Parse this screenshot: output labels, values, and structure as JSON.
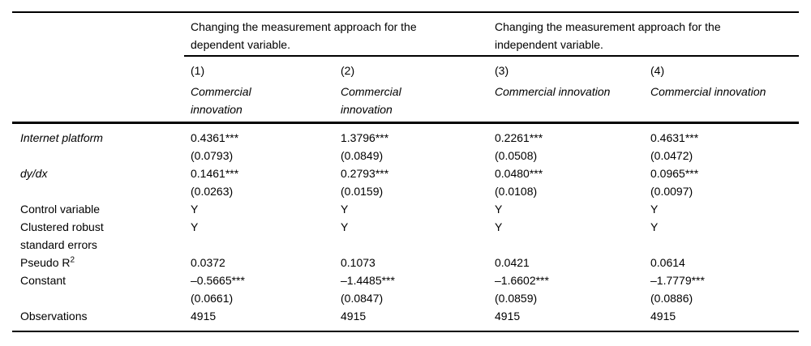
{
  "header": {
    "groups": [
      {
        "label": "Changing the measurement approach for the\ndependent variable."
      },
      {
        "label": "Changing the measurement approach for the\nindependent variable."
      }
    ],
    "numbers": [
      "(1)",
      "(2)",
      "(3)",
      "(4)"
    ],
    "dep_vars": [
      "Commercial\ninnovation",
      "Commercial\ninnovation",
      "Commercial innovation",
      "Commercial innovation"
    ]
  },
  "rows": [
    {
      "label": "Internet platform",
      "sup": "",
      "cells": [
        "0.4361***",
        "1.3796***",
        "0.2261***",
        "0.4631***"
      ]
    },
    {
      "label": "",
      "sup": "",
      "cells": [
        "(0.0793)",
        "(0.0849)",
        "(0.0508)",
        "(0.0472)"
      ]
    },
    {
      "label": "dy/dx",
      "sup": "",
      "cells": [
        "0.1461***",
        "0.2793***",
        "0.0480***",
        "0.0965***"
      ]
    },
    {
      "label": "",
      "sup": "",
      "cells": [
        "(0.0263)",
        "(0.0159)",
        "(0.0108)",
        "(0.0097)"
      ]
    },
    {
      "label": "Control variable",
      "sup": "",
      "cells": [
        "Y",
        "Y",
        "Y",
        "Y"
      ]
    },
    {
      "label": "Clustered robust\nstandard errors",
      "sup": "",
      "cells": [
        "Y",
        "Y",
        "Y",
        "Y"
      ]
    },
    {
      "label": "Pseudo R",
      "sup": "2",
      "cells": [
        "0.0372",
        "0.1073",
        "0.0421",
        "0.0614"
      ]
    },
    {
      "label": "Constant",
      "sup": "",
      "cells": [
        "–0.5665***",
        "–1.4485***",
        "–1.6602***",
        "–1.7779***"
      ]
    },
    {
      "label": "",
      "sup": "",
      "cells": [
        "(0.0661)",
        "(0.0847)",
        "(0.0859)",
        "(0.0886)"
      ]
    },
    {
      "label": "Observations",
      "sup": "",
      "cells": [
        "4915",
        "4915",
        "4915",
        "4915"
      ]
    }
  ]
}
